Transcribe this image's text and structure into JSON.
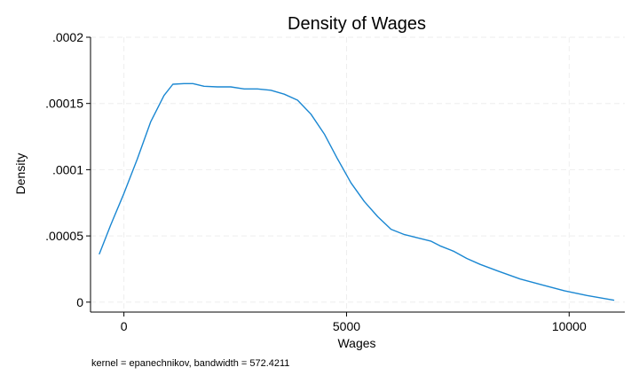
{
  "chart_data": {
    "type": "line",
    "title": "Density of Wages",
    "xlabel": "Wages",
    "ylabel": "Density",
    "note": "kernel = epanechnikov, bandwidth = 572.4211",
    "xlim": [
      -750,
      11250
    ],
    "ylim": [
      -7.5e-06,
      0.0002
    ],
    "xticks": [
      0,
      5000,
      10000
    ],
    "xtick_labels": [
      "0",
      "5000",
      "10000"
    ],
    "yticks": [
      0,
      5e-05,
      0.0001,
      0.00015,
      0.0002
    ],
    "ytick_labels": [
      "0",
      ".00005",
      ".0001",
      ".00015",
      ".0002"
    ],
    "grid": true,
    "line_color": "#1a87d2",
    "series": [
      {
        "x": [
          -550,
          -300,
          0,
          300,
          600,
          900,
          1100,
          1350,
          1550,
          1800,
          2100,
          2400,
          2700,
          3000,
          3300,
          3600,
          3900,
          4200,
          4500,
          4800,
          5100,
          5400,
          5700,
          6000,
          6300,
          6600,
          6900,
          7100,
          7400,
          7700,
          8000,
          8400,
          8900,
          9400,
          9900,
          10400,
          11000
        ],
        "y": [
          3.65e-05,
          5.8e-05,
          8.2e-05,
          0.000108,
          0.000136,
          0.000156,
          0.0001645,
          0.000165,
          0.000165,
          0.000163,
          0.0001625,
          0.0001625,
          0.000161,
          0.000161,
          0.00016,
          0.000157,
          0.0001525,
          0.000142,
          0.000127,
          0.000108,
          9e-05,
          7.6e-05,
          6.45e-05,
          5.5e-05,
          5.1e-05,
          4.85e-05,
          4.6e-05,
          4.25e-05,
          3.85e-05,
          3.3e-05,
          2.85e-05,
          2.35e-05,
          1.75e-05,
          1.3e-05,
          8.5e-06,
          5e-06,
          1.5e-06
        ]
      }
    ]
  }
}
